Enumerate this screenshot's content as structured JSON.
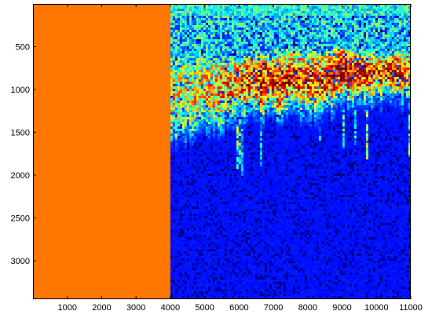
{
  "chart_data": {
    "type": "heatmap",
    "title": "",
    "xlabel": "",
    "ylabel": "",
    "xlim": [
      0,
      11000
    ],
    "ylim": [
      3450,
      0
    ],
    "y_reversed": true,
    "x_ticks": [
      1000,
      2000,
      3000,
      4000,
      5000,
      6000,
      7000,
      8000,
      9000,
      10000,
      11000
    ],
    "y_ticks": [
      500,
      1000,
      1500,
      2000,
      2500,
      3000
    ],
    "grid": false,
    "colormap": "jet",
    "regions": [
      {
        "name": "masked",
        "x_range": [
          0,
          4000
        ],
        "y_range": [
          0,
          3450
        ],
        "color": "#ff7600"
      }
    ],
    "background_color": "#00008f",
    "profile": {
      "x": [
        4000,
        4500,
        5000,
        5500,
        6000,
        6500,
        7000,
        7500,
        8000,
        8500,
        9000,
        9500,
        10000,
        10500,
        11000
      ],
      "band_top": [
        650,
        600,
        600,
        620,
        600,
        560,
        580,
        520,
        560,
        560,
        480,
        540,
        580,
        560,
        540
      ],
      "band_bottom": [
        1500,
        1450,
        1400,
        1350,
        1250,
        1250,
        1250,
        1200,
        1250,
        1200,
        1100,
        1100,
        1080,
        1050,
        1050
      ],
      "peak_intensity": [
        0.6,
        0.62,
        0.62,
        0.68,
        0.75,
        0.82,
        0.86,
        0.85,
        0.8,
        0.86,
        0.96,
        0.9,
        0.82,
        0.86,
        0.78
      ]
    }
  }
}
